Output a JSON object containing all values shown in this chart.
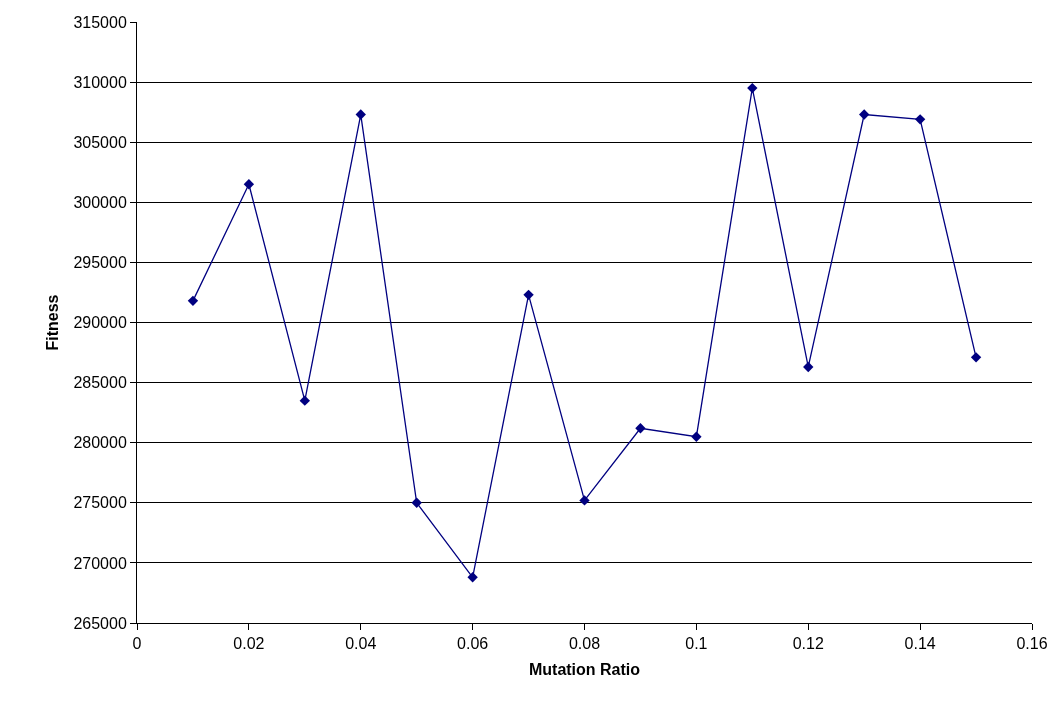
{
  "chart_data": {
    "type": "line",
    "xlabel": "Mutation Ratio",
    "ylabel": "Fitness",
    "x": [
      0.01,
      0.02,
      0.03,
      0.04,
      0.05,
      0.06,
      0.07,
      0.08,
      0.09,
      0.1,
      0.11,
      0.12,
      0.13,
      0.14,
      0.15
    ],
    "series": [
      {
        "color": "#000080",
        "values": [
          291800,
          301500,
          283500,
          307300,
          275000,
          268800,
          292300,
          275200,
          281200,
          280500,
          309500,
          286300,
          307300,
          306900,
          287100
        ]
      }
    ],
    "xlim": [
      0,
      0.16
    ],
    "xticks": [
      0,
      0.02,
      0.04,
      0.06,
      0.08,
      0.1,
      0.12,
      0.14,
      0.16
    ],
    "ylim": [
      265000,
      315000
    ],
    "yticks": [
      265000,
      270000,
      275000,
      280000,
      285000,
      290000,
      295000,
      300000,
      305000,
      310000,
      315000
    ],
    "grid": "y",
    "marker": "diamond",
    "line_style": "solid"
  }
}
